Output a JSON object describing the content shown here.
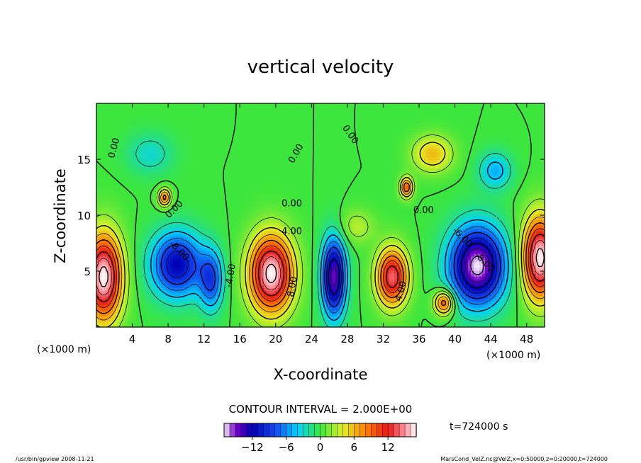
{
  "chart_data": {
    "type": "heatmap",
    "title": "vertical velocity",
    "xlabel": "X-coordinate",
    "ylabel": "Z-coordinate",
    "x_unit": "(×1000 m)",
    "y_unit": "(×1000 m)",
    "xlim": [
      0,
      50
    ],
    "ylim": [
      0,
      20
    ],
    "x_ticks": [
      4,
      8,
      12,
      16,
      20,
      24,
      28,
      32,
      36,
      40,
      44,
      48
    ],
    "y_ticks": [
      5,
      10,
      15
    ],
    "contour_interval_text": "CONTOUR INTERVAL = 2.000E+00",
    "colorbar": {
      "vmin": -17,
      "vmax": 17,
      "ticks": [
        -12,
        -6,
        0,
        6,
        12
      ]
    },
    "time_text": "t=724000 s",
    "cells": [
      {
        "x": 0.8,
        "z": 4.5,
        "value": 17,
        "sx": 2.0,
        "sz": 3.8
      },
      {
        "x": 9.0,
        "z": 5.6,
        "value": -12,
        "sx": 2.8,
        "sz": 2.8
      },
      {
        "x": 12.8,
        "z": 4.2,
        "value": -8,
        "sx": 1.3,
        "sz": 2.6
      },
      {
        "x": 19.5,
        "z": 4.8,
        "value": 17,
        "sx": 2.4,
        "sz": 3.4
      },
      {
        "x": 26.5,
        "z": 4.5,
        "value": -15,
        "sx": 1.3,
        "sz": 3.4
      },
      {
        "x": 33.0,
        "z": 4.5,
        "value": 14,
        "sx": 1.7,
        "sz": 2.5
      },
      {
        "x": 38.8,
        "z": 2.2,
        "value": 10,
        "sx": 1.1,
        "sz": 1.1
      },
      {
        "x": 42.5,
        "z": 5.5,
        "value": -17,
        "sx": 3.0,
        "sz": 3.4
      },
      {
        "x": 49.5,
        "z": 6.2,
        "value": 17,
        "sx": 1.9,
        "sz": 3.6
      },
      {
        "x": 7.6,
        "z": 11.6,
        "value": 9,
        "sx": 0.7,
        "sz": 0.8
      },
      {
        "x": 34.6,
        "z": 12.5,
        "value": 10,
        "sx": 0.7,
        "sz": 0.9
      },
      {
        "x": 37.5,
        "z": 15.5,
        "value": 6,
        "sx": 2.2,
        "sz": 1.6
      },
      {
        "x": 44.5,
        "z": 14.0,
        "value": -5,
        "sx": 1.8,
        "sz": 1.6
      },
      {
        "x": 6.0,
        "z": 15.5,
        "value": -3,
        "sx": 2.5,
        "sz": 1.8
      },
      {
        "x": 29.0,
        "z": 9.0,
        "value": 3,
        "sx": 2.0,
        "sz": 1.5
      }
    ],
    "contour_labels": [
      {
        "text": "0.00",
        "x": 2.0,
        "z": 16.0,
        "angle": -75
      },
      {
        "text": "0.00",
        "x": 22.3,
        "z": 15.5,
        "angle": -60
      },
      {
        "text": "0.00",
        "x": 28.3,
        "z": 17.2,
        "angle": 55
      },
      {
        "text": "0.00",
        "x": 21.8,
        "z": 11.0,
        "angle": 0
      },
      {
        "text": "0.00",
        "x": 8.7,
        "z": 10.5,
        "angle": -45
      },
      {
        "text": "0.00",
        "x": 36.5,
        "z": 10.4,
        "angle": 0
      },
      {
        "text": "4.00",
        "x": 21.8,
        "z": 8.5,
        "angle": 0
      },
      {
        "text": "8.00",
        "x": 21.9,
        "z": 3.6,
        "angle": -80
      },
      {
        "text": "-8.00",
        "x": 9.2,
        "z": 6.8,
        "angle": 45
      },
      {
        "text": "-4.00",
        "x": 15.0,
        "z": 4.6,
        "angle": -80
      },
      {
        "text": "4.00",
        "x": 34.0,
        "z": 3.2,
        "angle": -75
      },
      {
        "text": "-6.00",
        "x": 40.8,
        "z": 8.0,
        "angle": 45
      },
      {
        "text": "-8.00",
        "x": 43.3,
        "z": 5.8,
        "angle": 45
      }
    ]
  },
  "footer": {
    "left": "/usr/bin/gpview  2008-11-21",
    "right": "MarsCond_VelZ.nc@VelZ,x=0:50000,z=0:20000,t=724000"
  }
}
